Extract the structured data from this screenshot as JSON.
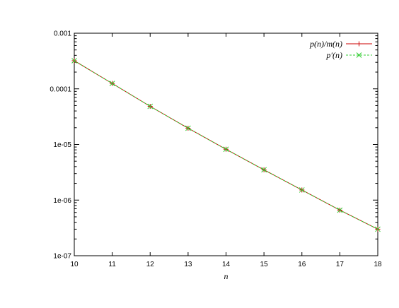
{
  "chart_data": {
    "type": "line",
    "title": "",
    "xlabel": "n",
    "ylabel": "",
    "xlim": [
      10,
      18
    ],
    "ylim": [
      1e-07,
      0.001
    ],
    "yscale": "log",
    "grid": false,
    "legend_position": "top-right",
    "x_ticks": [
      10,
      11,
      12,
      13,
      14,
      15,
      16,
      17,
      18
    ],
    "x_tick_labels": [
      "10",
      "11",
      "12",
      "13",
      "14",
      "15",
      "16",
      "17",
      "18"
    ],
    "y_ticks": [
      1e-07,
      1e-06,
      1e-05,
      0.0001,
      0.001
    ],
    "y_tick_labels": [
      "1e-07",
      "1e-06",
      "1e-05",
      "0.0001",
      "0.001"
    ],
    "x": [
      10,
      11,
      12,
      13,
      14,
      15,
      16,
      17,
      18
    ],
    "series": [
      {
        "name": "p(n)/m(n)",
        "color": "#cc0000",
        "marker": "plus",
        "values": [
          0.00032,
          0.000125,
          4.85e-05,
          1.96e-05,
          8.2e-06,
          3.5e-06,
          1.52e-06,
          6.6e-07,
          3e-07
        ]
      },
      {
        "name": "p′(n)",
        "color": "#33cc33",
        "marker": "cross",
        "dashed": true,
        "values": [
          0.00032,
          0.000125,
          4.85e-05,
          1.96e-05,
          8.2e-06,
          3.5e-06,
          1.52e-06,
          6.6e-07,
          3e-07
        ]
      }
    ]
  }
}
